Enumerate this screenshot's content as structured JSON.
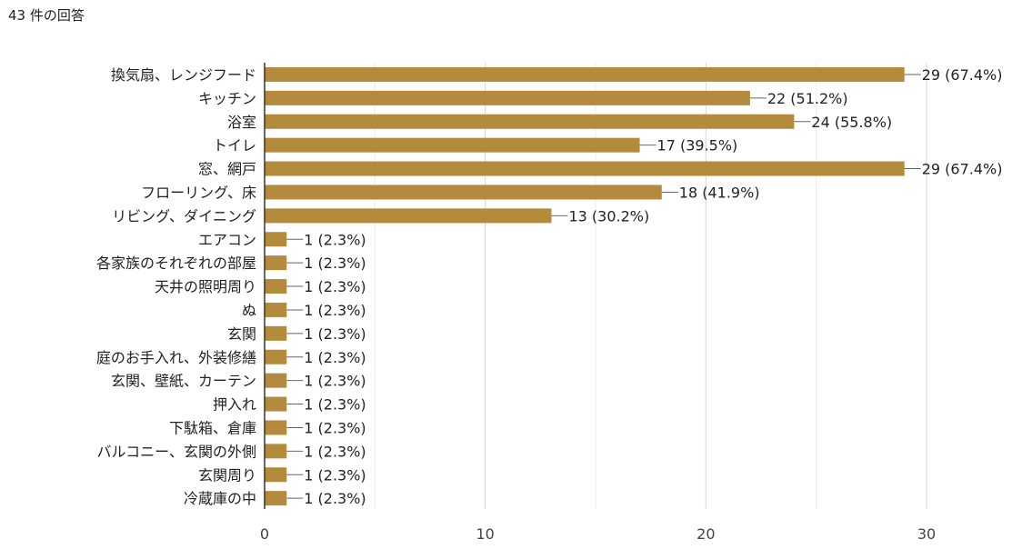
{
  "header": {
    "response_count": "43 件の回答"
  },
  "chart_data": {
    "type": "bar",
    "orientation": "horizontal",
    "categories": [
      "換気扇、レンジフード",
      "キッチン",
      "浴室",
      "トイレ",
      "窓、網戸",
      "フローリング、床",
      "リビング、ダイニング",
      "エアコン",
      "各家族のそれぞれの部屋",
      "天井の照明周り",
      "ぬ",
      "玄関",
      "庭のお手入れ、外装修繕",
      "玄関、壁紙、カーテン",
      "押入れ",
      "下駄箱、倉庫",
      "バルコニー、玄関の外側",
      "玄関周り",
      "冷蔵庫の中"
    ],
    "values": [
      29,
      22,
      24,
      17,
      29,
      18,
      13,
      1,
      1,
      1,
      1,
      1,
      1,
      1,
      1,
      1,
      1,
      1,
      1
    ],
    "value_labels": [
      "29 (67.4%)",
      "22 (51.2%)",
      "24 (55.8%)",
      "17 (39.5%)",
      "29 (67.4%)",
      "18 (41.9%)",
      "13 (30.2%)",
      "1 (2.3%)",
      "1 (2.3%)",
      "1 (2.3%)",
      "1 (2.3%)",
      "1 (2.3%)",
      "1 (2.3%)",
      "1 (2.3%)",
      "1 (2.3%)",
      "1 (2.3%)",
      "1 (2.3%)",
      "1 (2.3%)",
      "1 (2.3%)"
    ],
    "xlim": [
      0,
      30
    ],
    "xticks": [
      0,
      10,
      20,
      30
    ],
    "grid": true,
    "bar_color": "#b48a3c"
  }
}
